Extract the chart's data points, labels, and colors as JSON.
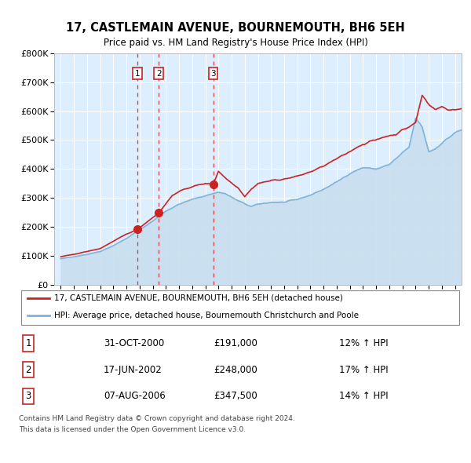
{
  "title": "17, CASTLEMAIN AVENUE, BOURNEMOUTH, BH6 5EH",
  "subtitle": "Price paid vs. HM Land Registry's House Price Index (HPI)",
  "legend_line1": "17, CASTLEMAIN AVENUE, BOURNEMOUTH, BH6 5EH (detached house)",
  "legend_line2": "HPI: Average price, detached house, Bournemouth Christchurch and Poole",
  "footer_line1": "Contains HM Land Registry data © Crown copyright and database right 2024.",
  "footer_line2": "This data is licensed under the Open Government Licence v3.0.",
  "hpi_color": "#7fb3d9",
  "hpi_fill_color": "#c8dff0",
  "price_color": "#cc2222",
  "marker_color": "#cc2222",
  "background_color": "#ddeeff",
  "grid_color": "#ffffff",
  "sale_points": [
    {
      "label": "1",
      "date_str": "31-OCT-2000",
      "price": 191000,
      "price_str": "£191,000",
      "hpi_pct": "12% ↑ HPI",
      "x": 2000.833
    },
    {
      "label": "2",
      "date_str": "17-JUN-2002",
      "price": 248000,
      "price_str": "£248,000",
      "hpi_pct": "17% ↑ HPI",
      "x": 2002.458
    },
    {
      "label": "3",
      "date_str": "07-AUG-2006",
      "price": 347500,
      "price_str": "£347,500",
      "hpi_pct": "14% ↑ HPI",
      "x": 2006.6
    }
  ],
  "ylim": [
    0,
    800000
  ],
  "xlim_start": 1994.5,
  "xlim_end": 2025.5,
  "ytick_values": [
    0,
    100000,
    200000,
    300000,
    400000,
    500000,
    600000,
    700000,
    800000
  ],
  "ytick_labels": [
    "£0",
    "£100K",
    "£200K",
    "£300K",
    "£400K",
    "£500K",
    "£600K",
    "£700K",
    "£800K"
  ],
  "hpi_anchors_x": [
    1995.0,
    1996.0,
    1997.0,
    1998.0,
    1999.0,
    2000.0,
    2001.0,
    2002.0,
    2003.0,
    2004.0,
    2005.0,
    2006.0,
    2007.0,
    2007.5,
    2008.5,
    2009.5,
    2010.0,
    2011.0,
    2012.0,
    2013.0,
    2014.0,
    2015.0,
    2016.0,
    2017.0,
    2018.0,
    2019.0,
    2020.0,
    2021.0,
    2021.5,
    2022.0,
    2022.5,
    2023.0,
    2023.5,
    2024.0,
    2025.0,
    2025.5
  ],
  "hpi_anchors_y": [
    90000,
    97000,
    105000,
    115000,
    135000,
    160000,
    190000,
    220000,
    255000,
    278000,
    295000,
    308000,
    320000,
    315000,
    290000,
    270000,
    278000,
    285000,
    285000,
    295000,
    310000,
    330000,
    355000,
    385000,
    405000,
    400000,
    415000,
    455000,
    475000,
    575000,
    545000,
    460000,
    470000,
    490000,
    525000,
    535000
  ],
  "prop_anchors_x": [
    1995.0,
    1996.0,
    1997.0,
    1998.0,
    1999.0,
    2000.0,
    2000.833,
    2001.5,
    2002.458,
    2003.0,
    2003.5,
    2004.5,
    2005.5,
    2006.0,
    2006.6,
    2007.0,
    2007.5,
    2008.5,
    2009.0,
    2009.5,
    2010.0,
    2011.0,
    2012.0,
    2013.0,
    2014.0,
    2015.0,
    2016.0,
    2017.0,
    2017.5,
    2018.0,
    2018.5,
    2019.0,
    2019.5,
    2020.0,
    2020.5,
    2021.0,
    2021.5,
    2022.0,
    2022.5,
    2023.0,
    2023.5,
    2024.0,
    2024.5,
    2025.0,
    2025.5
  ],
  "prop_anchors_y": [
    97000,
    105000,
    115000,
    125000,
    150000,
    175000,
    191000,
    215000,
    248000,
    280000,
    310000,
    332000,
    345000,
    350000,
    347500,
    393000,
    370000,
    335000,
    305000,
    330000,
    350000,
    360000,
    365000,
    375000,
    390000,
    410000,
    435000,
    460000,
    475000,
    485000,
    495000,
    500000,
    510000,
    515000,
    520000,
    535000,
    545000,
    560000,
    655000,
    625000,
    605000,
    615000,
    605000,
    605000,
    610000
  ]
}
